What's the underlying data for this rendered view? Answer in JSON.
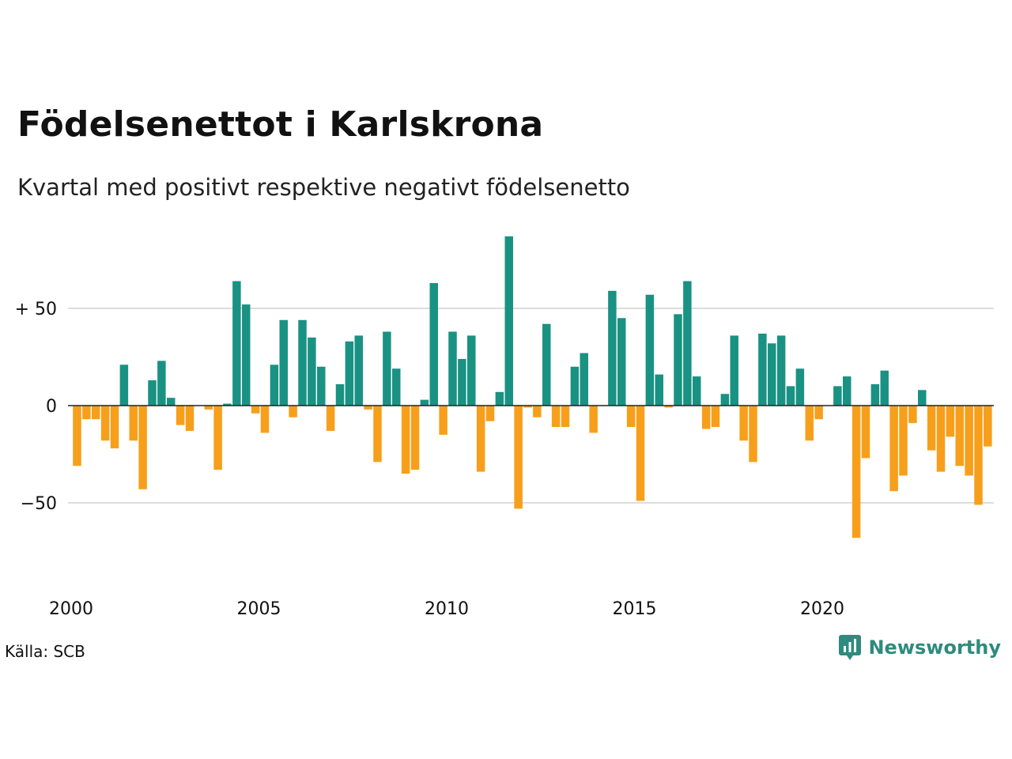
{
  "chart_data": {
    "type": "bar",
    "title": "Födelsenettot i Karlskrona",
    "subtitle": "Kvartal med positivt respektive negativt födelsenetto",
    "x_start": "2000 Q1",
    "values": [
      -31,
      -7,
      -7,
      -18,
      -22,
      21,
      -18,
      -43,
      13,
      23,
      4,
      -10,
      -13,
      0,
      -2,
      -33,
      1,
      64,
      52,
      -4,
      -14,
      21,
      44,
      -6,
      44,
      35,
      20,
      -13,
      11,
      33,
      36,
      -2,
      -29,
      38,
      19,
      -35,
      -33,
      3,
      63,
      -15,
      38,
      24,
      36,
      -34,
      -8,
      7,
      87,
      -53,
      -1,
      -6,
      42,
      -11,
      -11,
      20,
      27,
      -14,
      0,
      59,
      45,
      -11,
      -49,
      57,
      16,
      -1,
      47,
      64,
      15,
      -12,
      -11,
      6,
      36,
      -18,
      -29,
      37,
      32,
      36,
      10,
      19,
      -18,
      -7,
      0,
      10,
      15,
      -68,
      -27,
      11,
      18,
      -44,
      -36,
      -9,
      8,
      -23,
      -34,
      -16,
      -31,
      -36,
      -51,
      -21
    ],
    "y_ticks": [
      {
        "value": 50,
        "label": "+ 50"
      },
      {
        "value": 0,
        "label": "0"
      },
      {
        "value": -50,
        "label": "−50"
      }
    ],
    "x_ticks": [
      {
        "year": 2000,
        "label": "2000"
      },
      {
        "year": 2005,
        "label": "2005"
      },
      {
        "year": 2010,
        "label": "2010"
      },
      {
        "year": 2015,
        "label": "2015"
      },
      {
        "year": 2020,
        "label": "2020"
      }
    ],
    "ylim": [
      -75,
      90
    ],
    "grid": true,
    "legend": "none",
    "colors": {
      "positive": "#1a9283",
      "negative": "#f79f1b",
      "grid": "#dddddd",
      "zero_line": "#222222"
    }
  },
  "footer": {
    "source": "Källa: SCB",
    "brand": "Newsworthy",
    "brand_icon": "bar-chart-speech-bubble-icon"
  }
}
